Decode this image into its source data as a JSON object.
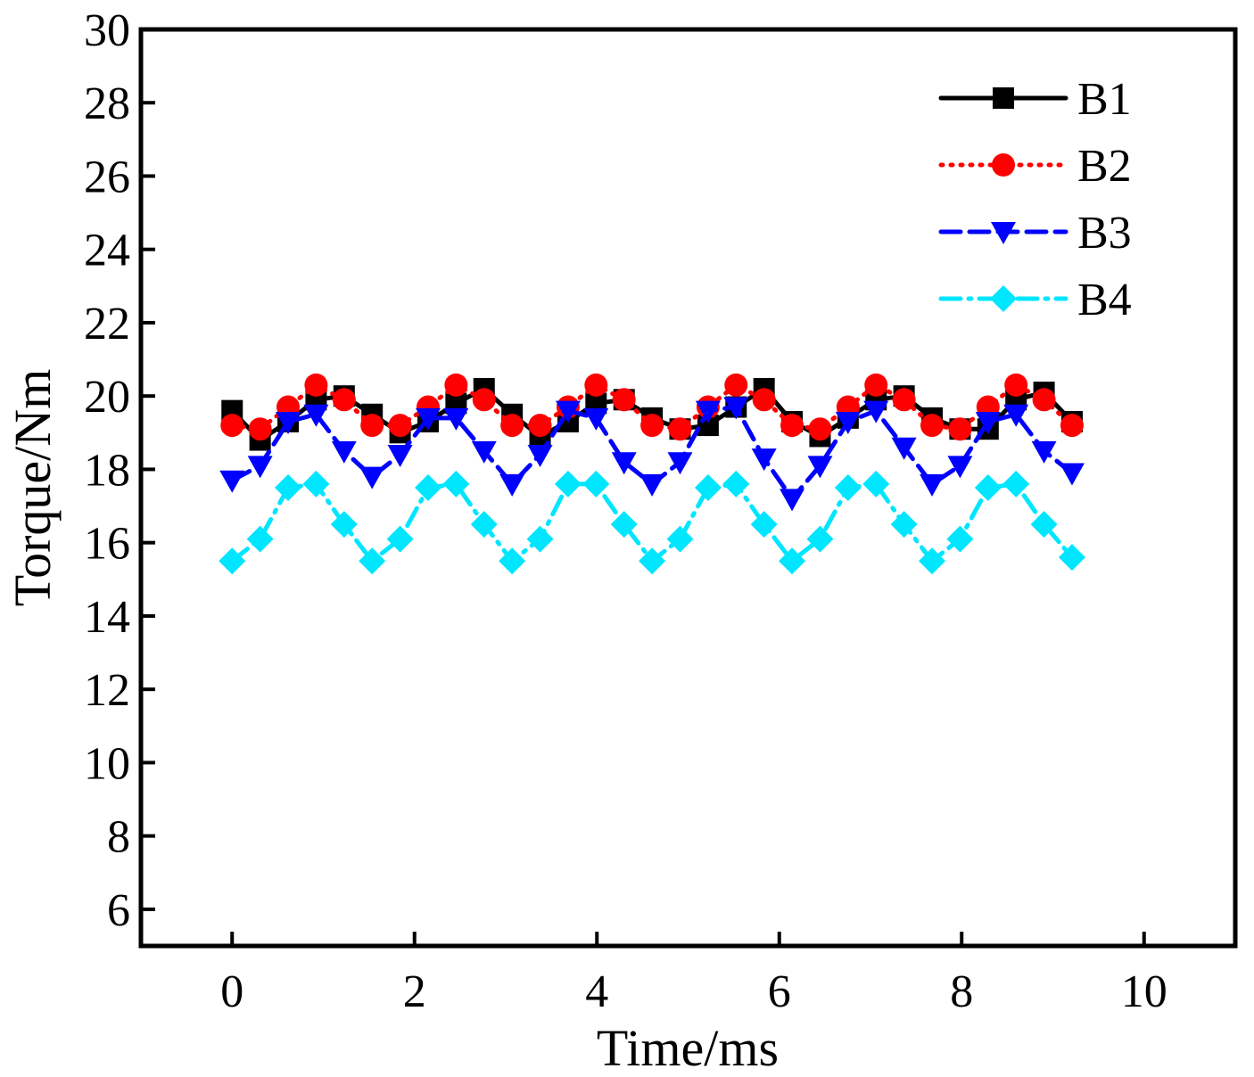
{
  "chart_data": {
    "type": "line",
    "title": "",
    "xlabel": "Time/ms",
    "ylabel": "Torque/Nm",
    "xlim": [
      -1,
      11
    ],
    "ylim": [
      5,
      30
    ],
    "xticks": [
      0,
      2,
      4,
      6,
      8,
      10
    ],
    "yticks": [
      6,
      8,
      10,
      12,
      14,
      16,
      18,
      20,
      22,
      24,
      26,
      28,
      30
    ],
    "grid": false,
    "legend_position": "top-right",
    "x": [
      0,
      0.307,
      0.614,
      0.921,
      1.228,
      1.535,
      1.842,
      2.149,
      2.456,
      2.763,
      3.07,
      3.377,
      3.684,
      3.991,
      4.298,
      4.605,
      4.912,
      5.219,
      5.526,
      5.833,
      6.14,
      6.447,
      6.754,
      7.061,
      7.368,
      7.675,
      7.982,
      8.289,
      8.596,
      8.903,
      9.21
    ],
    "series": [
      {
        "name": "B1",
        "color": "#000000",
        "marker": "square",
        "dash": "solid",
        "values": [
          19.6,
          18.8,
          19.3,
          19.9,
          20.0,
          19.5,
          19.0,
          19.3,
          19.8,
          20.2,
          19.5,
          18.9,
          19.3,
          19.8,
          19.9,
          19.4,
          19.1,
          19.2,
          19.7,
          20.2,
          19.3,
          18.9,
          19.4,
          19.9,
          20.0,
          19.4,
          19.1,
          19.1,
          19.9,
          20.1,
          19.3
        ]
      },
      {
        "name": "B2",
        "color": "#ff0000",
        "marker": "circle",
        "dash": "dot",
        "values": [
          19.2,
          19.1,
          19.7,
          20.3,
          19.9,
          19.2,
          19.2,
          19.7,
          20.3,
          19.9,
          19.2,
          19.2,
          19.7,
          20.3,
          19.9,
          19.2,
          19.1,
          19.7,
          20.3,
          19.9,
          19.2,
          19.1,
          19.7,
          20.3,
          19.9,
          19.2,
          19.1,
          19.7,
          20.3,
          19.9,
          19.2
        ]
      },
      {
        "name": "B3",
        "color": "#0000ff",
        "marker": "triangle-down",
        "dash": "dash",
        "values": [
          17.7,
          18.1,
          19.3,
          19.5,
          18.5,
          17.8,
          18.4,
          19.4,
          19.4,
          18.5,
          17.6,
          18.4,
          19.6,
          19.4,
          18.2,
          17.6,
          18.2,
          19.6,
          19.7,
          18.3,
          17.2,
          18.1,
          19.3,
          19.6,
          18.6,
          17.6,
          18.1,
          19.3,
          19.5,
          18.5,
          17.9
        ]
      },
      {
        "name": "B4",
        "color": "#00e6ff",
        "marker": "diamond",
        "dash": "dashdot",
        "values": [
          15.5,
          16.1,
          17.5,
          17.6,
          16.5,
          15.5,
          16.1,
          17.5,
          17.6,
          16.5,
          15.5,
          16.1,
          17.6,
          17.6,
          16.5,
          15.5,
          16.1,
          17.5,
          17.6,
          16.5,
          15.5,
          16.1,
          17.5,
          17.6,
          16.5,
          15.5,
          16.1,
          17.5,
          17.6,
          16.5,
          15.6
        ]
      }
    ]
  }
}
